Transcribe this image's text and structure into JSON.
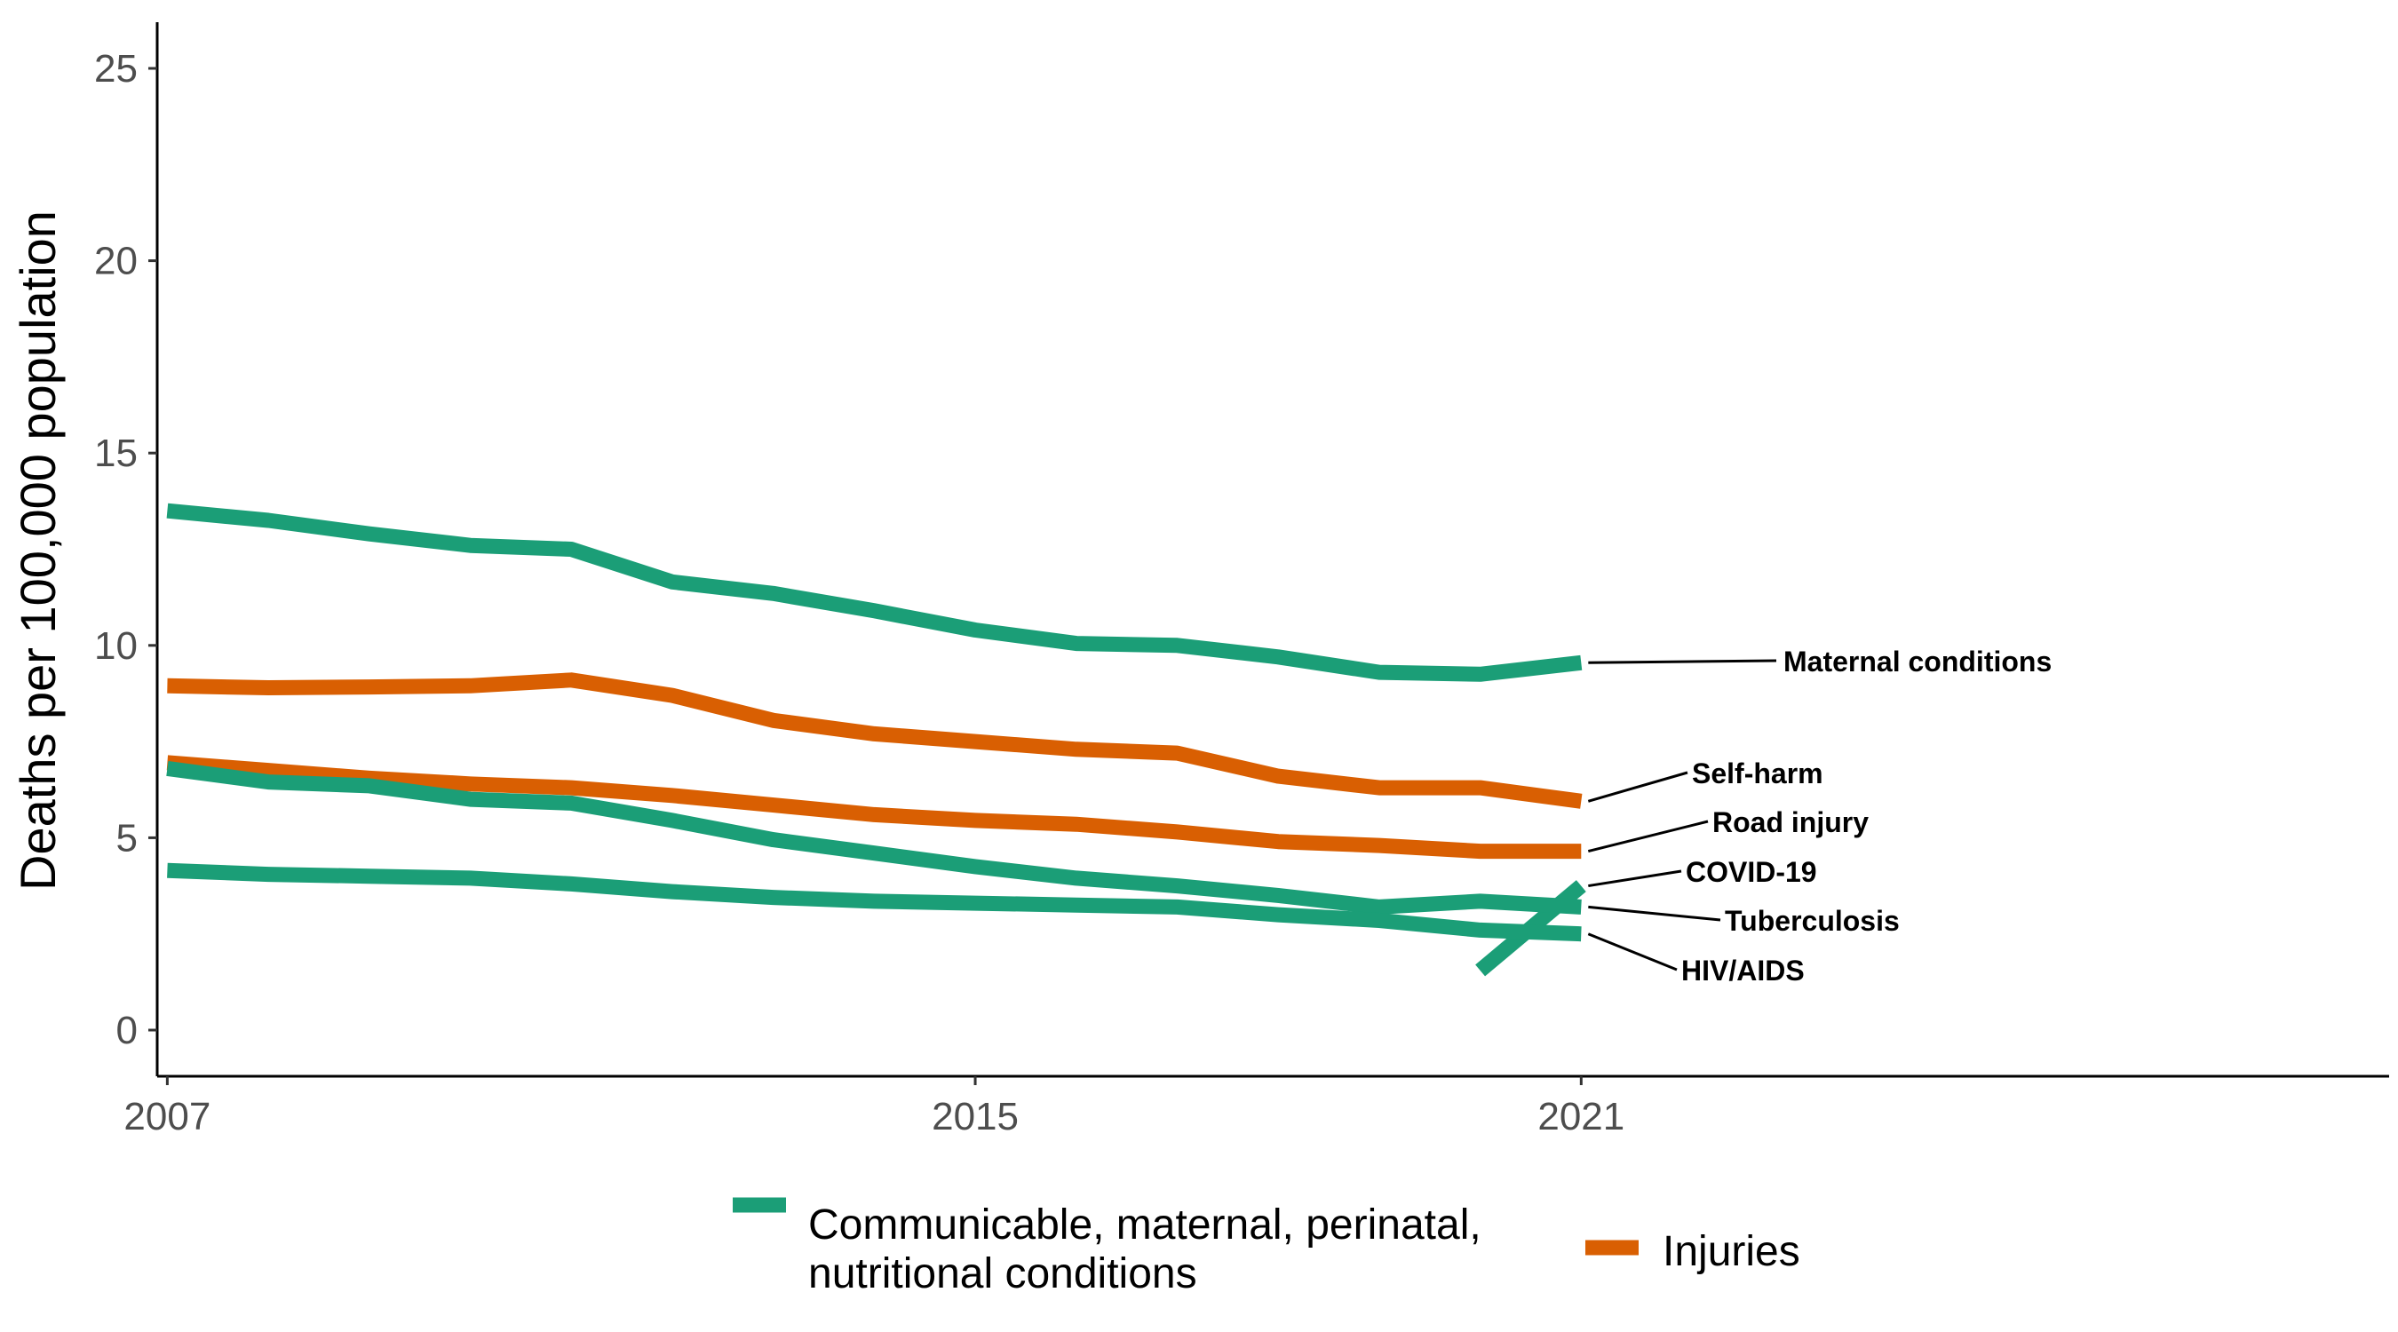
{
  "chart_data": {
    "type": "line",
    "ylabel": "Deaths per 100,000 population",
    "xlabel": "",
    "xlim": [
      2006.9,
      2029
    ],
    "ylim": [
      -1.2,
      26.2
    ],
    "x_ticks": [
      2007,
      2015,
      2021
    ],
    "y_ticks": [
      0,
      5,
      10,
      15,
      20,
      25
    ],
    "grid": false,
    "legend_position": "bottom",
    "groups": [
      {
        "key": "communicable",
        "name": "Communicable, maternal, perinatal, nutritional conditions",
        "name_lines": [
          "Communicable, maternal, perinatal,",
          "nutritional conditions"
        ],
        "color": "#1b9e77"
      },
      {
        "key": "injuries",
        "name": "Injuries",
        "name_lines": [
          "Injuries"
        ],
        "color": "#d95f02"
      }
    ],
    "series": [
      {
        "name": "Maternal conditions",
        "group": "communicable",
        "x": [
          2007,
          2008,
          2009,
          2010,
          2011,
          2012,
          2013,
          2014,
          2015,
          2016,
          2017,
          2018,
          2019,
          2020,
          2021
        ],
        "values": [
          13.5,
          13.25,
          12.9,
          12.6,
          12.5,
          11.65,
          11.35,
          10.9,
          10.4,
          10.05,
          10.0,
          9.7,
          9.3,
          9.25,
          9.55
        ]
      },
      {
        "name": "Self-harm",
        "group": "injuries",
        "x": [
          2007,
          2008,
          2009,
          2010,
          2011,
          2012,
          2013,
          2014,
          2015,
          2016,
          2017,
          2018,
          2019,
          2020,
          2021
        ],
        "values": [
          8.95,
          8.9,
          8.92,
          8.95,
          9.1,
          8.7,
          8.05,
          7.7,
          7.5,
          7.3,
          7.2,
          6.6,
          6.3,
          6.3,
          5.95
        ]
      },
      {
        "name": "Road injury",
        "group": "injuries",
        "x": [
          2007,
          2008,
          2009,
          2010,
          2011,
          2012,
          2013,
          2014,
          2015,
          2016,
          2017,
          2018,
          2019,
          2020,
          2021
        ],
        "values": [
          6.95,
          6.75,
          6.55,
          6.4,
          6.3,
          6.1,
          5.85,
          5.6,
          5.45,
          5.35,
          5.15,
          4.9,
          4.8,
          4.65,
          4.65
        ]
      },
      {
        "name": "COVID-19",
        "group": "communicable",
        "x": [
          2020,
          2021
        ],
        "values": [
          1.55,
          3.75
        ]
      },
      {
        "name": "Tuberculosis",
        "group": "communicable",
        "x": [
          2007,
          2008,
          2009,
          2010,
          2011,
          2012,
          2013,
          2014,
          2015,
          2016,
          2017,
          2018,
          2019,
          2020,
          2021
        ],
        "values": [
          6.8,
          6.45,
          6.35,
          6.0,
          5.9,
          5.45,
          4.95,
          4.6,
          4.25,
          3.95,
          3.75,
          3.5,
          3.2,
          3.35,
          3.2
        ]
      },
      {
        "name": "HIV/AIDS",
        "group": "communicable",
        "x": [
          2007,
          2008,
          2009,
          2010,
          2011,
          2012,
          2013,
          2014,
          2015,
          2016,
          2017,
          2018,
          2019,
          2020,
          2021
        ],
        "values": [
          4.15,
          4.05,
          4.0,
          3.95,
          3.8,
          3.6,
          3.45,
          3.35,
          3.3,
          3.25,
          3.2,
          3.0,
          2.85,
          2.6,
          2.5
        ]
      }
    ]
  }
}
